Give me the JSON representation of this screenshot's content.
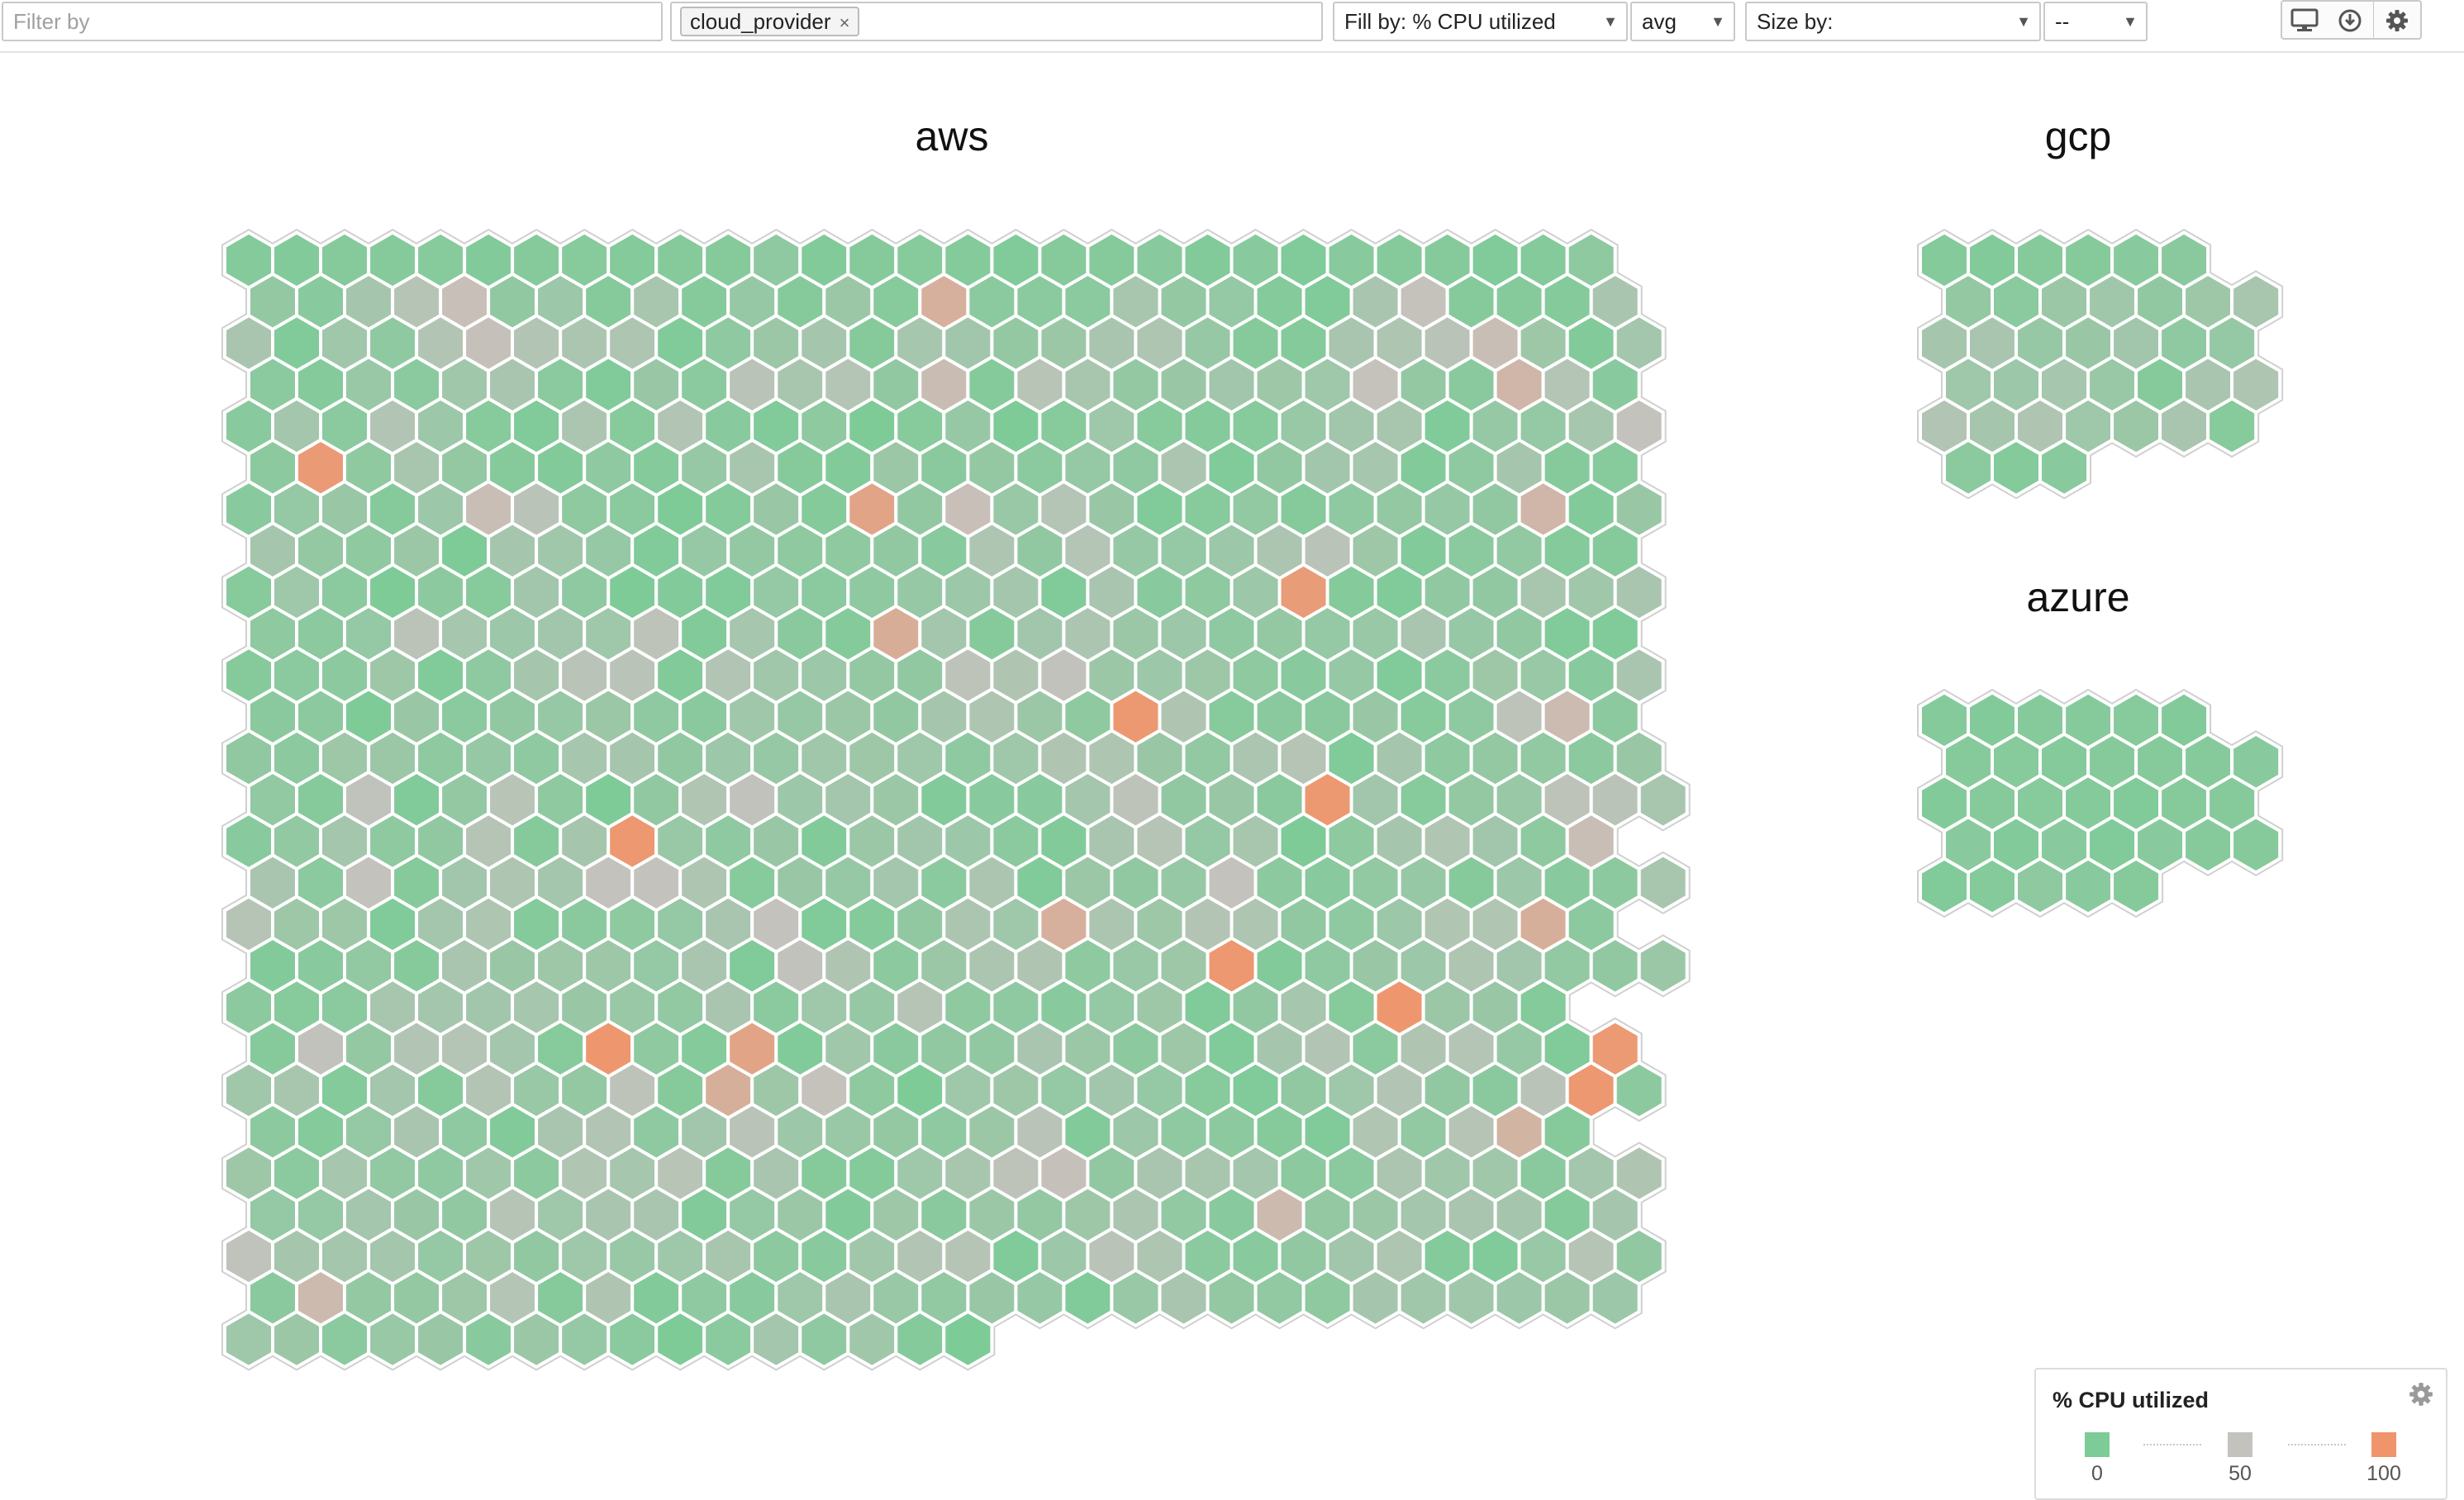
{
  "toolbar": {
    "filter_placeholder": "Filter by",
    "group_tag": "cloud_provider",
    "group_tag_remove": "×",
    "fill_by": "Fill by: % CPU utilized",
    "aggregation": "avg",
    "size_by": "Size by:",
    "size_value": "--",
    "caret": "▼"
  },
  "colors": {
    "low": "#7dcb97",
    "mid": "#c4c2bd",
    "high": "#f0956b",
    "hex_border": "#ffffff",
    "outline": "#d0d0d0"
  },
  "groups": [
    {
      "name": "aws",
      "host_cpu": [
        [
          5,
          4,
          6,
          6,
          7,
          4,
          6,
          7,
          5,
          6,
          6,
          13,
          4,
          6,
          7,
          5,
          3,
          6,
          6,
          8,
          4,
          8,
          2,
          8,
          6,
          6,
          2,
          5,
          12
        ],
        [
          16,
          8,
          28,
          40,
          53,
          14,
          22,
          6,
          30,
          6,
          18,
          6,
          21,
          7,
          70,
          10,
          10,
          10,
          30,
          16,
          17,
          5,
          3,
          31,
          51,
          6,
          6,
          5,
          31
        ],
        [
          31,
          2,
          25,
          13,
          37,
          52,
          37,
          33,
          34,
          3,
          13,
          21,
          28,
          6,
          29,
          26,
          16,
          21,
          32,
          34,
          18,
          6,
          5,
          31,
          34,
          42,
          54,
          23,
          4,
          27
        ],
        [
          10,
          5,
          19,
          10,
          25,
          31,
          10,
          2,
          20,
          10,
          42,
          30,
          39,
          14,
          56,
          5,
          41,
          30,
          16,
          20,
          26,
          23,
          24,
          51,
          16,
          9,
          63,
          39,
          8
        ],
        [
          8,
          27,
          10,
          37,
          22,
          7,
          3,
          33,
          7,
          37,
          8,
          3,
          12,
          1,
          7,
          18,
          1,
          7,
          24,
          7,
          5,
          7,
          19,
          26,
          30,
          2,
          18,
          17,
          29,
          50
        ],
        [
          11,
          93,
          12,
          30,
          16,
          6,
          4,
          13,
          5,
          18,
          30,
          6,
          4,
          21,
          9,
          16,
          10,
          17,
          13,
          33,
          3,
          14,
          26,
          29,
          4,
          13,
          28,
          6,
          7
        ],
        [
          8,
          17,
          20,
          6,
          22,
          55,
          43,
          12,
          10,
          1,
          5,
          20,
          5,
          83,
          14,
          53,
          19,
          39,
          20,
          2,
          7,
          15,
          6,
          13,
          16,
          18,
          14,
          63,
          4,
          20
        ],
        [
          28,
          16,
          12,
          21,
          1,
          28,
          25,
          18,
          3,
          18,
          16,
          12,
          12,
          14,
          8,
          34,
          14,
          39,
          18,
          17,
          22,
          33,
          42,
          23,
          4,
          10,
          15,
          5,
          6
        ],
        [
          7,
          24,
          10,
          1,
          11,
          7,
          26,
          13,
          1,
          4,
          3,
          17,
          10,
          13,
          18,
          22,
          27,
          2,
          32,
          8,
          12,
          22,
          92,
          5,
          3,
          14,
          14,
          30,
          25,
          32
        ],
        [
          12,
          11,
          17,
          44,
          29,
          22,
          26,
          24,
          45,
          4,
          29,
          9,
          5,
          73,
          27,
          6,
          26,
          33,
          21,
          22,
          13,
          16,
          17,
          19,
          31,
          18,
          14,
          3,
          2
        ],
        [
          6,
          10,
          11,
          23,
          3,
          13,
          28,
          43,
          42,
          4,
          37,
          25,
          22,
          16,
          14,
          45,
          35,
          48,
          21,
          22,
          23,
          12,
          8,
          18,
          3,
          10,
          23,
          19,
          8,
          32
        ],
        [
          9,
          11,
          1,
          20,
          10,
          14,
          18,
          21,
          13,
          9,
          25,
          18,
          21,
          14,
          28,
          34,
          21,
          12,
          96,
          35,
          7,
          9,
          9,
          20,
          7,
          13,
          45,
          58,
          11
        ],
        [
          14,
          11,
          23,
          21,
          12,
          18,
          13,
          29,
          28,
          14,
          22,
          18,
          25,
          23,
          24,
          13,
          24,
          35,
          34,
          20,
          15,
          33,
          40,
          3,
          28,
          12,
          16,
          15,
          11,
          20
        ],
        [
          15,
          6,
          47,
          3,
          16,
          41,
          12,
          1,
          14,
          36,
          48,
          22,
          27,
          21,
          4,
          8,
          8,
          27,
          46,
          14,
          20,
          9,
          96,
          26,
          7,
          16,
          19,
          45,
          42,
          30
        ],
        [
          8,
          15,
          27,
          12,
          14,
          40,
          6,
          28,
          97,
          19,
          13,
          20,
          4,
          21,
          26,
          22,
          10,
          4,
          31,
          40,
          17,
          30,
          1,
          12,
          28,
          36,
          26,
          12,
          54
        ],
        [
          31,
          10,
          49,
          6,
          26,
          34,
          27,
          50,
          50,
          34,
          7,
          20,
          18,
          27,
          10,
          33,
          2,
          21,
          14,
          18,
          49,
          11,
          8,
          15,
          18,
          6,
          22,
          8,
          11,
          30
        ],
        [
          40,
          23,
          23,
          2,
          27,
          34,
          5,
          9,
          12,
          17,
          31,
          49,
          3,
          5,
          14,
          33,
          24,
          70,
          33,
          23,
          38,
          34,
          14,
          13,
          22,
          36,
          36,
          71,
          11
        ],
        [
          4,
          8,
          15,
          6,
          31,
          20,
          23,
          23,
          17,
          31,
          3,
          48,
          35,
          11,
          21,
          33,
          35,
          12,
          19,
          23,
          97,
          4,
          13,
          20,
          22,
          34,
          26,
          15,
          14,
          21
        ],
        [
          11,
          7,
          10,
          30,
          27,
          26,
          29,
          20,
          19,
          15,
          32,
          10,
          24,
          18,
          40,
          12,
          13,
          8,
          17,
          23,
          3,
          14,
          29,
          7,
          98,
          21,
          20,
          5
        ],
        [
          6,
          48,
          16,
          37,
          39,
          27,
          7,
          98,
          12,
          5,
          83,
          2,
          25,
          9,
          14,
          14,
          32,
          21,
          11,
          23,
          2,
          28,
          37,
          10,
          35,
          39,
          18,
          3,
          95
        ],
        [
          25,
          30,
          5,
          27,
          6,
          38,
          19,
          16,
          46,
          6,
          71,
          23,
          51,
          12,
          1,
          24,
          23,
          17,
          26,
          17,
          7,
          3,
          14,
          24,
          37,
          14,
          9,
          43,
          97,
          11
        ],
        [
          11,
          5,
          17,
          32,
          13,
          4,
          32,
          37,
          13,
          26,
          43,
          22,
          19,
          16,
          13,
          21,
          42,
          4,
          22,
          13,
          11,
          6,
          3,
          36,
          15,
          40,
          66,
          6
        ],
        [
          23,
          10,
          29,
          15,
          13,
          25,
          11,
          36,
          29,
          41,
          6,
          31,
          6,
          5,
          24,
          30,
          46,
          52,
          14,
          32,
          30,
          27,
          11,
          10,
          33,
          25,
          25,
          9,
          27,
          35
        ],
        [
          17,
          17,
          27,
          20,
          14,
          40,
          24,
          32,
          31,
          4,
          17,
          21,
          4,
          23,
          9,
          21,
          16,
          23,
          33,
          15,
          8,
          59,
          16,
          21,
          27,
          32,
          28,
          5,
          28
        ],
        [
          47,
          28,
          27,
          27,
          17,
          23,
          14,
          24,
          19,
          24,
          30,
          11,
          8,
          25,
          37,
          40,
          3,
          22,
          42,
          34,
          10,
          8,
          14,
          26,
          34,
          5,
          3,
          19,
          40,
          14
        ],
        [
          9,
          59,
          16,
          16,
          23,
          39,
          6,
          35,
          4,
          13,
          8,
          24,
          31,
          19,
          15,
          20,
          18,
          3,
          19,
          32,
          16,
          15,
          12,
          28,
          25,
          25,
          22,
          21,
          22
        ],
        [
          24,
          21,
          10,
          19,
          20,
          8,
          21,
          17,
          10,
          1,
          10,
          27,
          13,
          25,
          5,
          0
        ]
      ]
    },
    {
      "name": "gcp",
      "host_cpu": [
        [
          5,
          4,
          6,
          6,
          8,
          9
        ],
        [
          16,
          10,
          21,
          25,
          14,
          23,
          30
        ],
        [
          28,
          32,
          18,
          20,
          26,
          13,
          17
        ],
        [
          24,
          22,
          29,
          19,
          6,
          31,
          34
        ],
        [
          37,
          28,
          35,
          24,
          21,
          32,
          7
        ],
        [
          10,
          5,
          8
        ]
      ]
    },
    {
      "name": "azure",
      "host_cpu": [
        [
          5,
          4,
          6,
          6,
          7,
          4
        ],
        [
          6,
          7,
          5,
          6,
          6,
          6,
          8
        ],
        [
          4,
          6,
          7,
          5,
          3,
          6,
          6
        ],
        [
          8,
          4,
          8,
          2,
          8,
          6,
          6
        ],
        [
          2,
          5,
          12,
          8,
          6
        ]
      ]
    }
  ],
  "legend": {
    "title": "% CPU utilized",
    "stops": [
      {
        "label": "0",
        "color": "#7dcb97"
      },
      {
        "label": "50",
        "color": "#c4c2bd"
      },
      {
        "label": "100",
        "color": "#f0956b"
      }
    ]
  }
}
